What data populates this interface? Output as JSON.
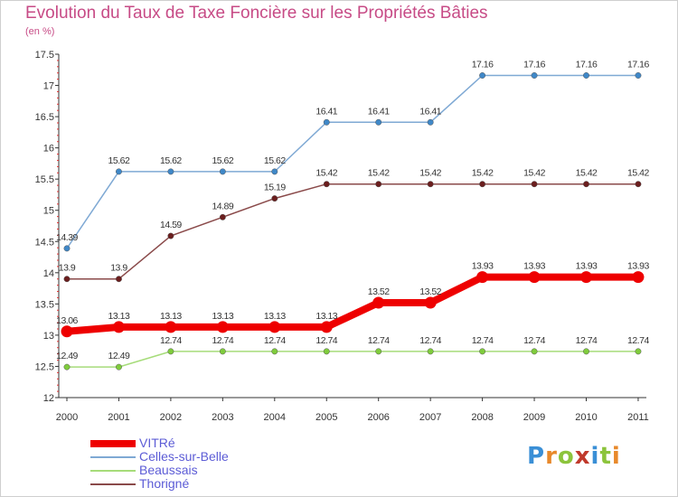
{
  "header": {
    "title": "Evolution du Taux de Taxe Foncière sur les Propriétés Bâties",
    "subtitle": "(en %)"
  },
  "logo": {
    "letters": [
      "P",
      "r",
      "o",
      "x",
      "i",
      "t",
      "i"
    ],
    "colors": [
      "#3a8fd6",
      "#e8892b",
      "#8cc43c",
      "#c0392b",
      "#3a8fd6",
      "#8cc43c",
      "#e8892b"
    ]
  },
  "chart_data": {
    "type": "line",
    "categories": [
      "2000",
      "2001",
      "2002",
      "2003",
      "2004",
      "2005",
      "2006",
      "2007",
      "2008",
      "2009",
      "2010",
      "2011"
    ],
    "ylim": [
      12,
      17.5
    ],
    "yticks": [
      "12",
      "12.5",
      "13",
      "13.5",
      "14",
      "14.5",
      "15",
      "15.5",
      "16",
      "16.5",
      "17",
      "17.5"
    ],
    "grid": false,
    "legend_position": "bottom-left",
    "series": [
      {
        "name": "Celles-sur-Belle",
        "color": "#7fa9d4",
        "marker": "#3f88c8",
        "width": 1.5,
        "values": [
          14.39,
          15.62,
          15.62,
          15.62,
          15.62,
          16.41,
          16.41,
          16.41,
          17.16,
          17.16,
          17.16,
          17.16
        ],
        "labels": [
          "14.39",
          "15.62",
          "15.62",
          "15.62",
          "15.62",
          "16.41",
          "16.41",
          "16.41",
          "17.16",
          "17.16",
          "17.16",
          "17.16"
        ]
      },
      {
        "name": "Thorigné",
        "color": "#8a4a4a",
        "marker": "#6b1e1e",
        "width": 1.5,
        "values": [
          13.9,
          13.9,
          14.59,
          14.89,
          15.19,
          15.42,
          15.42,
          15.42,
          15.42,
          15.42,
          15.42,
          15.42
        ],
        "labels": [
          "13.9",
          "13.9",
          "14.59",
          "14.89",
          "15.19",
          "15.42",
          "15.42",
          "15.42",
          "15.42",
          "15.42",
          "15.42",
          "15.42"
        ]
      },
      {
        "name": "Beaussais",
        "color": "#a6dc7a",
        "marker": "#7fcc3c",
        "width": 1.5,
        "values": [
          12.49,
          12.49,
          12.74,
          12.74,
          12.74,
          12.74,
          12.74,
          12.74,
          12.74,
          12.74,
          12.74,
          12.74
        ],
        "labels": [
          "12.49",
          "12.49",
          "12.74",
          "12.74",
          "12.74",
          "12.74",
          "12.74",
          "12.74",
          "12.74",
          "12.74",
          "12.74",
          "12.74"
        ]
      },
      {
        "name": "VITRé",
        "color": "#ee0000",
        "marker": "#ee0000",
        "width": 8,
        "values": [
          13.06,
          13.13,
          13.13,
          13.13,
          13.13,
          13.13,
          13.52,
          13.52,
          13.93,
          13.93,
          13.93,
          13.93
        ],
        "labels": [
          "13.06",
          "13.13",
          "13.13",
          "13.13",
          "13.13",
          "13.13",
          "13.52",
          "13.52",
          "13.93",
          "13.93",
          "13.93",
          "13.93"
        ]
      }
    ],
    "legend_order": [
      3,
      0,
      2,
      1
    ]
  }
}
